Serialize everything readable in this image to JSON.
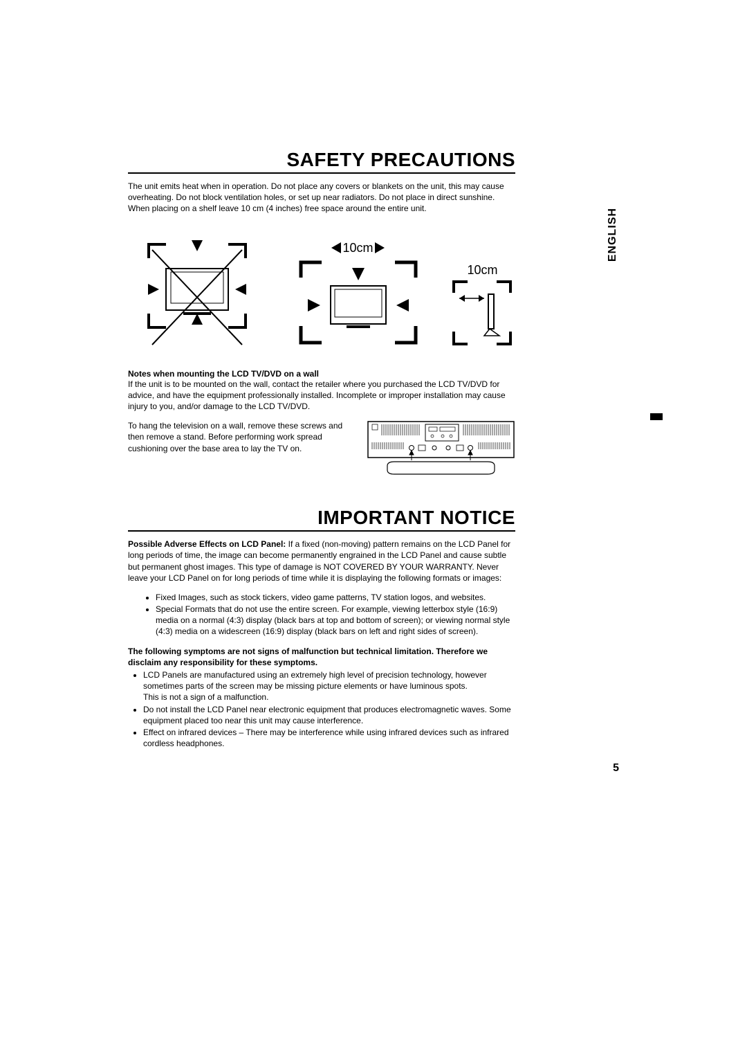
{
  "language_tab": "ENGLISH",
  "page_number": "5",
  "safety": {
    "title": "SAFETY PRECAUTIONS",
    "intro": "The unit emits heat when in operation.  Do not place any covers or blankets on the unit, this may cause overheating. Do not block ventilation holes, or set up near radiators. Do not place in direct sunshine.  When placing on a shelf leave 10 cm (4 inches) free space around the entire unit.",
    "spacing_label_top": "10cm",
    "spacing_label_side": "10cm",
    "notes_heading": "Notes when mounting the LCD TV/DVD on a wall",
    "notes_body": "If the unit is to be mounted on the wall, contact the retailer where you purchased the LCD TV/DVD for advice, and have the equipment professionally installed. Incomplete or improper installation may cause injury to you, and/or damage to the LCD TV/DVD.",
    "hang_body": "To hang the television on a wall, remove these screws and then remove a stand.  Before performing work spread cushioning over the base area to lay the TV on."
  },
  "notice": {
    "title": "IMPORTANT NOTICE",
    "adverse_bold": "Possible Adverse Effects on LCD Panel:",
    "adverse_body": " If a fixed (non-moving) pattern remains on the LCD Panel for long periods of time, the image can become permanently engrained in the LCD Panel and cause subtle but permanent ghost images. This type of damage is NOT COVERED BY YOUR WARRANTY. Never leave your LCD Panel on for long periods of time while it is displaying the following formats or images:",
    "bullets1": [
      "Fixed Images, such as stock tickers, video game patterns, TV station logos, and websites.",
      "Special Formats that do not use the entire screen. For example, viewing letterbox style (16:9) media on a normal (4:3) display (black bars at top and bottom of screen); or viewing normal style (4:3) media on a widescreen (16:9) display (black bars on left and right sides of screen)."
    ],
    "disclaimer_bold": "The following symptoms are not signs of malfunction but technical limitation. Therefore we disclaim any responsibility for these symptoms.",
    "bullets2": [
      "LCD Panels are manufactured using an extremely high level of precision technology, however sometimes parts of the screen may be missing picture elements or have luminous spots.\nThis is not a sign of a malfunction.",
      "Do not install the LCD Panel near electronic equipment that produces electromagnetic waves.  Some equipment placed too near this unit may cause interference.",
      "Effect on infrared devices – There may be interference while using infrared devices such as infrared cordless headphones."
    ]
  },
  "colors": {
    "text": "#000000",
    "bg": "#ffffff",
    "line": "#000000"
  }
}
